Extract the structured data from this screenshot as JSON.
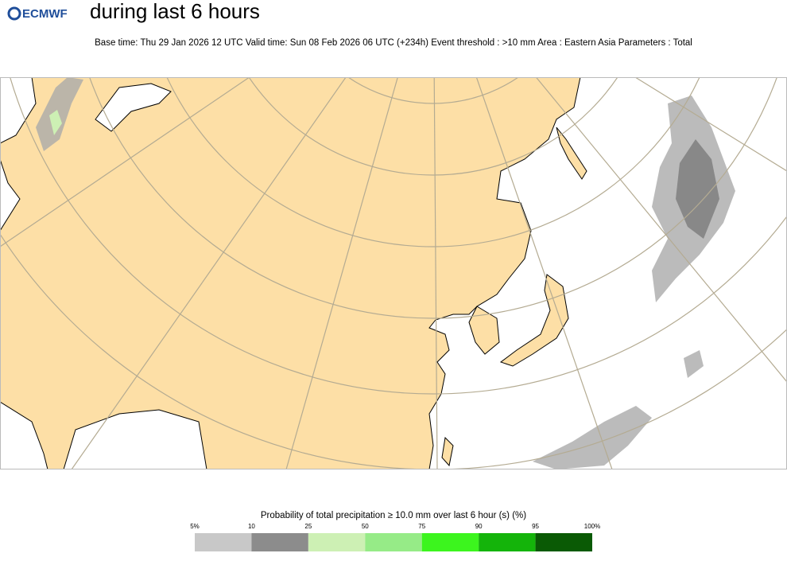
{
  "header": {
    "logo": "ECMWF",
    "title": "during last 6 hours",
    "subtitle": "Base time: Thu 29 Jan 2026 12 UTC Valid time: Sun 08 Feb 2026 06 UTC (+234h) Event threshold : >10 mm Area : Eastern Asia Parameters : Total"
  },
  "legend": {
    "title": "Probability of total precipitation ≥ 10.0 mm over last 6 hour (s) (%)",
    "ticks": [
      {
        "value": 5,
        "label": "5%"
      },
      10,
      25,
      50,
      75,
      90,
      95,
      {
        "value": 100,
        "label": "100%"
      }
    ],
    "colors": [
      "#c8c8c8",
      "#8c8c8c",
      "#cdf0b4",
      "#96eb87",
      "#3cf51e",
      "#14b40a",
      "#0a5a05"
    ]
  }
}
